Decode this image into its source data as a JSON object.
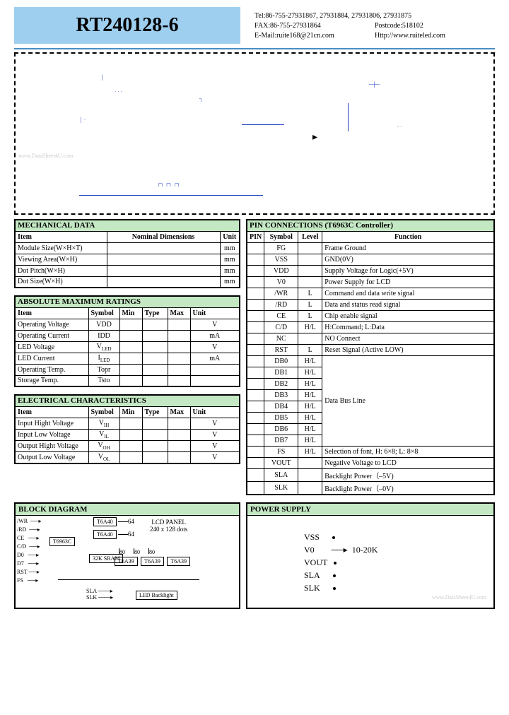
{
  "header": {
    "title": "RT240128-6",
    "title_bg": "#9fcfef",
    "hr_color": "#4a8ec2",
    "contact": {
      "tel": "Tel:86-755-27931867, 27931884, 27931806, 27931875",
      "fax": "FAX:86-755-27931864",
      "postcode": "Postcode:518102",
      "email": "E-Mail:ruite168@21cn.com",
      "http": "Http://www.ruiteled.com"
    }
  },
  "schematic": {
    "border_style": "dashed",
    "watermark": "www.DataSheet4U.com"
  },
  "mechanical": {
    "title": "MECHANICAL  DATA",
    "header_bg": "#c4e8c4",
    "columns": [
      "Item",
      "Nominal  Dimensions",
      "Unit"
    ],
    "rows": [
      {
        "item": "Module Size(W×H×T)",
        "dim": "",
        "unit": "mm"
      },
      {
        "item": "Viewing  Area(W×H)",
        "dim": "",
        "unit": "mm"
      },
      {
        "item": "Dot  Pitch(W×H)",
        "dim": "",
        "unit": "mm"
      },
      {
        "item": "Dot  Size(W×H)",
        "dim": "",
        "unit": "mm"
      }
    ]
  },
  "absmax": {
    "title": "ABSOLUTE  MAXIMUM  RATINGS",
    "columns": [
      "Item",
      "Symbol",
      "Min",
      "Type",
      "Max",
      "Unit"
    ],
    "rows": [
      {
        "item": "Operating  Voltage",
        "sym": "VDD",
        "min": "",
        "typ": "",
        "max": "",
        "unit": "V"
      },
      {
        "item": "Operating  Current",
        "sym": "IDD",
        "min": "",
        "typ": "",
        "max": "",
        "unit": "mA"
      },
      {
        "item": "LED  Voltage",
        "sym": "V",
        "sub": "LED",
        "min": "",
        "typ": "",
        "max": "",
        "unit": "V"
      },
      {
        "item": "LED  Current",
        "sym": "I",
        "sub": "LED",
        "min": "",
        "typ": "",
        "max": "",
        "unit": "mA"
      },
      {
        "item": "Operating  Temp.",
        "sym": "Topr",
        "min": "",
        "typ": "",
        "max": "",
        "unit": ""
      },
      {
        "item": "Storage  Temp.",
        "sym": "Tsto",
        "min": "",
        "typ": "",
        "max": "",
        "unit": ""
      }
    ]
  },
  "electrical": {
    "title": "ELECTRICAL  CHARACTERISTICS",
    "columns": [
      "Item",
      "Symbol",
      "Min",
      "Type",
      "Max",
      "Unit"
    ],
    "rows": [
      {
        "item": "Input Hight Voltage",
        "sym": "V",
        "sub": "IH",
        "unit": "V"
      },
      {
        "item": "Input  Low  Voltage",
        "sym": "V",
        "sub": "IL",
        "unit": "V"
      },
      {
        "item": "Output Hight Voltage",
        "sym": "V",
        "sub": "OH",
        "unit": "V"
      },
      {
        "item": "Output Low Voltage",
        "sym": "V",
        "sub": "OL",
        "unit": "V"
      }
    ]
  },
  "pins": {
    "title": "PIN  CONNECTIONS (T6963C Controller)",
    "columns": [
      "PIN",
      "Symbol",
      "Level",
      "Function"
    ],
    "rows": [
      {
        "pin": "",
        "sym": "FG",
        "lvl": "",
        "fn": "Frame Ground"
      },
      {
        "pin": "",
        "sym": "VSS",
        "lvl": "",
        "fn": "GND(0V)"
      },
      {
        "pin": "",
        "sym": "VDD",
        "lvl": "",
        "fn": "Supply Voltage for Logic(+5V)"
      },
      {
        "pin": "",
        "sym": "V0",
        "lvl": "",
        "fn": "Power Supply for LCD"
      },
      {
        "pin": "",
        "sym": "/WR",
        "lvl": "L",
        "fn": "Command and data write signal"
      },
      {
        "pin": "",
        "sym": "/RD",
        "lvl": "L",
        "fn": "Data and status read signal"
      },
      {
        "pin": "",
        "sym": "CE",
        "lvl": "L",
        "fn": "Chip enable signal"
      },
      {
        "pin": "",
        "sym": "C/D",
        "lvl": "H/L",
        "fn": "H:Command;  L:Data"
      },
      {
        "pin": "",
        "sym": "NC",
        "lvl": "",
        "fn": "NO Connect"
      },
      {
        "pin": "",
        "sym": "RST",
        "lvl": "L",
        "fn": "Reset Signal (Active LOW)"
      },
      {
        "pin": "",
        "sym": "DB0",
        "lvl": "H/L",
        "fn": "",
        "merge_start": true
      },
      {
        "pin": "",
        "sym": "DB1",
        "lvl": "H/L",
        "fn": ""
      },
      {
        "pin": "",
        "sym": "DB2",
        "lvl": "H/L",
        "fn": ""
      },
      {
        "pin": "",
        "sym": "DB3",
        "lvl": "H/L",
        "fn": ""
      },
      {
        "pin": "",
        "sym": "DB4",
        "lvl": "H/L",
        "fn": ""
      },
      {
        "pin": "",
        "sym": "DB5",
        "lvl": "H/L",
        "fn": ""
      },
      {
        "pin": "",
        "sym": "DB6",
        "lvl": "H/L",
        "fn": ""
      },
      {
        "pin": "",
        "sym": "DB7",
        "lvl": "H/L",
        "fn": ""
      },
      {
        "pin": "",
        "sym": "FS",
        "lvl": "H/L",
        "fn": "Selection of font,  H: 6×8;  L: 8×8"
      },
      {
        "pin": "",
        "sym": "VOUT",
        "lvl": "",
        "fn": "Negative Voltage to LCD"
      },
      {
        "pin": "",
        "sym": "SLA",
        "lvl": "",
        "fn": "Backlight Power（–5V)"
      },
      {
        "pin": "",
        "sym": "SLK",
        "lvl": "",
        "fn": "Backlight Power（–0V)"
      }
    ],
    "merged_fn": "Data Bus Line"
  },
  "block": {
    "title": "BLOCK  DIAGRAM",
    "signals": [
      "/WR",
      "/RD",
      "CE",
      "C/D",
      "D0",
      "D7",
      "RST",
      "FS"
    ],
    "controller": "T6963C",
    "drivers_top": "T6A40",
    "bus_top": "64",
    "bus_mid": "80",
    "drivers_mid": "T6A39",
    "sram": "32K\nSRAM",
    "lcd_label": "LCD  PANEL",
    "lcd_spec": "240 x 128 dots",
    "backlight_sla": "SLA",
    "backlight_slk": "SLK",
    "backlight_label": "LED Backlight"
  },
  "power": {
    "title": "POWER  SUPPLY",
    "labels": [
      "VSS",
      "V0",
      "VOUT",
      "SLA",
      "SLK"
    ],
    "pot": "10-20K",
    "watermark": "www.DataSheet4U.com"
  }
}
